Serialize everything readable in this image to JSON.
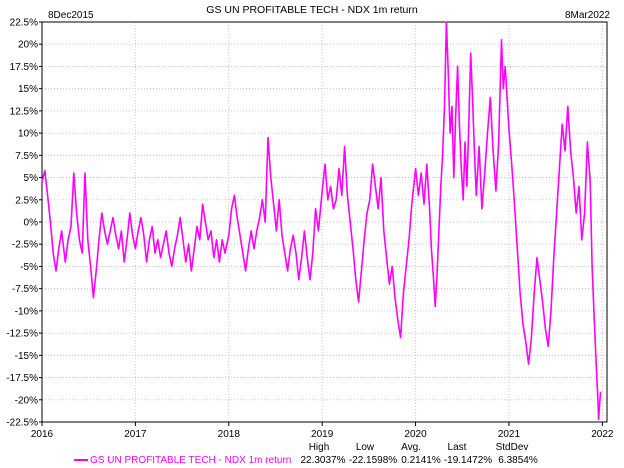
{
  "chart_data": {
    "type": "line",
    "title": "GS UN PROFITABLE TECH - NDX 1m return",
    "start_label": "8Dec2015",
    "end_label": "8Mar2022",
    "xlabel": "",
    "ylabel": "",
    "x_ticks": [
      "2016",
      "2017",
      "2018",
      "2019",
      "2020",
      "2021",
      "2022"
    ],
    "y_ticks": [
      "22.5%",
      "20%",
      "17.5%",
      "15%",
      "12.5%",
      "10%",
      "7.5%",
      "5%",
      "2.5%",
      "0%",
      "-2.5%",
      "-5%",
      "-7.5%",
      "-10%",
      "-12.5%",
      "-15%",
      "-17.5%",
      "-20%",
      "-22.5%"
    ],
    "ylim": [
      -22.5,
      22.5
    ],
    "xlim": [
      2016.0,
      2022.05
    ],
    "grid": true,
    "series": [
      {
        "name": "GS UN PROFITABLE TECH - NDX 1m return",
        "color": "#ff00ff",
        "points": [
          [
            2016.0,
            4.5
          ],
          [
            2016.03,
            5.8
          ],
          [
            2016.06,
            3.0
          ],
          [
            2016.09,
            0.0
          ],
          [
            2016.12,
            -3.5
          ],
          [
            2016.15,
            -5.5
          ],
          [
            2016.18,
            -3.0
          ],
          [
            2016.21,
            -1.0
          ],
          [
            2016.25,
            -4.5
          ],
          [
            2016.28,
            -2.0
          ],
          [
            2016.31,
            -0.5
          ],
          [
            2016.34,
            5.5
          ],
          [
            2016.37,
            1.0
          ],
          [
            2016.4,
            -2.0
          ],
          [
            2016.43,
            -3.5
          ],
          [
            2016.46,
            5.5
          ],
          [
            2016.49,
            -2.0
          ],
          [
            2016.52,
            -5.0
          ],
          [
            2016.55,
            -8.5
          ],
          [
            2016.58,
            -5.5
          ],
          [
            2016.61,
            -2.0
          ],
          [
            2016.64,
            1.0
          ],
          [
            2016.67,
            -1.0
          ],
          [
            2016.7,
            -2.5
          ],
          [
            2016.73,
            -1.0
          ],
          [
            2016.76,
            0.5
          ],
          [
            2016.79,
            -1.5
          ],
          [
            2016.82,
            -3.0
          ],
          [
            2016.85,
            -1.0
          ],
          [
            2016.88,
            -4.5
          ],
          [
            2016.91,
            -2.0
          ],
          [
            2016.94,
            1.0
          ],
          [
            2016.97,
            -1.5
          ],
          [
            2017.0,
            -3.0
          ],
          [
            2017.03,
            -1.0
          ],
          [
            2017.06,
            0.5
          ],
          [
            2017.09,
            -1.5
          ],
          [
            2017.12,
            -4.5
          ],
          [
            2017.15,
            -2.0
          ],
          [
            2017.18,
            -0.5
          ],
          [
            2017.21,
            -3.5
          ],
          [
            2017.24,
            -2.0
          ],
          [
            2017.27,
            -4.0
          ],
          [
            2017.3,
            -2.5
          ],
          [
            2017.33,
            -1.0
          ],
          [
            2017.36,
            -3.5
          ],
          [
            2017.39,
            -5.0
          ],
          [
            2017.42,
            -3.0
          ],
          [
            2017.45,
            -1.5
          ],
          [
            2017.48,
            0.5
          ],
          [
            2017.51,
            -2.0
          ],
          [
            2017.54,
            -4.5
          ],
          [
            2017.57,
            -2.5
          ],
          [
            2017.6,
            -5.5
          ],
          [
            2017.63,
            -3.0
          ],
          [
            2017.66,
            -0.5
          ],
          [
            2017.69,
            -2.0
          ],
          [
            2017.72,
            2.0
          ],
          [
            2017.75,
            0.0
          ],
          [
            2017.78,
            -2.0
          ],
          [
            2017.81,
            -1.0
          ],
          [
            2017.84,
            -4.0
          ],
          [
            2017.87,
            -2.0
          ],
          [
            2017.9,
            -4.5
          ],
          [
            2017.93,
            -2.0
          ],
          [
            2017.96,
            -3.5
          ],
          [
            2018.0,
            -1.5
          ],
          [
            2018.03,
            1.5
          ],
          [
            2018.06,
            3.0
          ],
          [
            2018.09,
            0.5
          ],
          [
            2018.12,
            -1.5
          ],
          [
            2018.15,
            -3.5
          ],
          [
            2018.18,
            -5.5
          ],
          [
            2018.21,
            -3.0
          ],
          [
            2018.24,
            -1.0
          ],
          [
            2018.27,
            -3.0
          ],
          [
            2018.3,
            -1.0
          ],
          [
            2018.33,
            0.5
          ],
          [
            2018.36,
            2.5
          ],
          [
            2018.39,
            0.0
          ],
          [
            2018.42,
            9.5
          ],
          [
            2018.45,
            5.0
          ],
          [
            2018.48,
            2.0
          ],
          [
            2018.51,
            -1.0
          ],
          [
            2018.54,
            2.5
          ],
          [
            2018.57,
            -1.5
          ],
          [
            2018.6,
            -3.5
          ],
          [
            2018.63,
            -5.5
          ],
          [
            2018.66,
            -3.0
          ],
          [
            2018.69,
            -1.5
          ],
          [
            2018.72,
            -3.5
          ],
          [
            2018.75,
            -6.5
          ],
          [
            2018.78,
            -4.0
          ],
          [
            2018.81,
            -1.0
          ],
          [
            2018.84,
            -4.0
          ],
          [
            2018.87,
            -6.5
          ],
          [
            2018.9,
            -3.5
          ],
          [
            2018.93,
            1.5
          ],
          [
            2018.96,
            -1.0
          ],
          [
            2019.0,
            3.5
          ],
          [
            2019.03,
            6.5
          ],
          [
            2019.06,
            2.5
          ],
          [
            2019.09,
            4.0
          ],
          [
            2019.12,
            1.5
          ],
          [
            2019.15,
            2.5
          ],
          [
            2019.18,
            6.0
          ],
          [
            2019.21,
            3.0
          ],
          [
            2019.24,
            8.5
          ],
          [
            2019.27,
            3.0
          ],
          [
            2019.3,
            0.0
          ],
          [
            2019.33,
            -3.0
          ],
          [
            2019.36,
            -6.5
          ],
          [
            2019.39,
            -9.0
          ],
          [
            2019.42,
            -5.5
          ],
          [
            2019.45,
            -2.0
          ],
          [
            2019.48,
            1.0
          ],
          [
            2019.51,
            2.5
          ],
          [
            2019.54,
            6.5
          ],
          [
            2019.57,
            4.0
          ],
          [
            2019.6,
            1.5
          ],
          [
            2019.63,
            5.0
          ],
          [
            2019.66,
            -1.0
          ],
          [
            2019.69,
            -4.0
          ],
          [
            2019.72,
            -7.0
          ],
          [
            2019.75,
            -5.0
          ],
          [
            2019.78,
            -8.5
          ],
          [
            2019.81,
            -11.0
          ],
          [
            2019.84,
            -13.0
          ],
          [
            2019.87,
            -8.0
          ],
          [
            2019.9,
            -5.0
          ],
          [
            2019.93,
            -2.0
          ],
          [
            2019.96,
            2.0
          ],
          [
            2020.0,
            6.0
          ],
          [
            2020.03,
            3.0
          ],
          [
            2020.06,
            5.5
          ],
          [
            2020.09,
            2.0
          ],
          [
            2020.12,
            6.5
          ],
          [
            2020.15,
            1.5
          ],
          [
            2020.17,
            -3.0
          ],
          [
            2020.19,
            -6.0
          ],
          [
            2020.21,
            -9.5
          ],
          [
            2020.23,
            -6.0
          ],
          [
            2020.25,
            -1.0
          ],
          [
            2020.27,
            4.0
          ],
          [
            2020.29,
            7.5
          ],
          [
            2020.31,
            13.0
          ],
          [
            2020.33,
            22.5
          ],
          [
            2020.35,
            17.0
          ],
          [
            2020.37,
            10.0
          ],
          [
            2020.39,
            13.0
          ],
          [
            2020.41,
            5.0
          ],
          [
            2020.43,
            12.0
          ],
          [
            2020.45,
            17.5
          ],
          [
            2020.47,
            11.0
          ],
          [
            2020.49,
            6.0
          ],
          [
            2020.51,
            2.5
          ],
          [
            2020.53,
            9.0
          ],
          [
            2020.55,
            4.0
          ],
          [
            2020.57,
            11.0
          ],
          [
            2020.59,
            19.0
          ],
          [
            2020.61,
            14.0
          ],
          [
            2020.63,
            8.0
          ],
          [
            2020.65,
            3.0
          ],
          [
            2020.68,
            8.5
          ],
          [
            2020.71,
            1.5
          ],
          [
            2020.74,
            5.5
          ],
          [
            2020.77,
            10.0
          ],
          [
            2020.8,
            14.0
          ],
          [
            2020.83,
            8.0
          ],
          [
            2020.86,
            3.5
          ],
          [
            2020.89,
            9.0
          ],
          [
            2020.92,
            20.5
          ],
          [
            2020.94,
            15.0
          ],
          [
            2020.96,
            17.5
          ],
          [
            2021.0,
            10.5
          ],
          [
            2021.03,
            6.5
          ],
          [
            2021.06,
            2.0
          ],
          [
            2021.09,
            -3.0
          ],
          [
            2021.12,
            -8.0
          ],
          [
            2021.15,
            -11.5
          ],
          [
            2021.18,
            -13.5
          ],
          [
            2021.21,
            -16.0
          ],
          [
            2021.24,
            -13.0
          ],
          [
            2021.27,
            -8.0
          ],
          [
            2021.3,
            -4.0
          ],
          [
            2021.33,
            -6.5
          ],
          [
            2021.36,
            -9.0
          ],
          [
            2021.39,
            -12.0
          ],
          [
            2021.42,
            -14.0
          ],
          [
            2021.45,
            -10.0
          ],
          [
            2021.48,
            -4.0
          ],
          [
            2021.51,
            1.0
          ],
          [
            2021.54,
            6.0
          ],
          [
            2021.57,
            11.0
          ],
          [
            2021.6,
            8.0
          ],
          [
            2021.63,
            13.0
          ],
          [
            2021.66,
            8.0
          ],
          [
            2021.69,
            5.0
          ],
          [
            2021.72,
            1.0
          ],
          [
            2021.75,
            4.0
          ],
          [
            2021.78,
            -2.0
          ],
          [
            2021.81,
            1.0
          ],
          [
            2021.84,
            9.0
          ],
          [
            2021.87,
            4.5
          ],
          [
            2021.89,
            -5.0
          ],
          [
            2021.91,
            -10.0
          ],
          [
            2021.93,
            -15.0
          ],
          [
            2021.95,
            -19.5
          ],
          [
            2021.96,
            -22.2
          ],
          [
            2021.98,
            -19.1
          ]
        ]
      }
    ],
    "stats": {
      "headers": [
        "High",
        "Low",
        "Avg.",
        "Last",
        "StdDev"
      ],
      "values": [
        "22.3037%",
        "-22.1598%",
        "0.2141%",
        "-19.1472%",
        "6.3854%"
      ]
    }
  }
}
